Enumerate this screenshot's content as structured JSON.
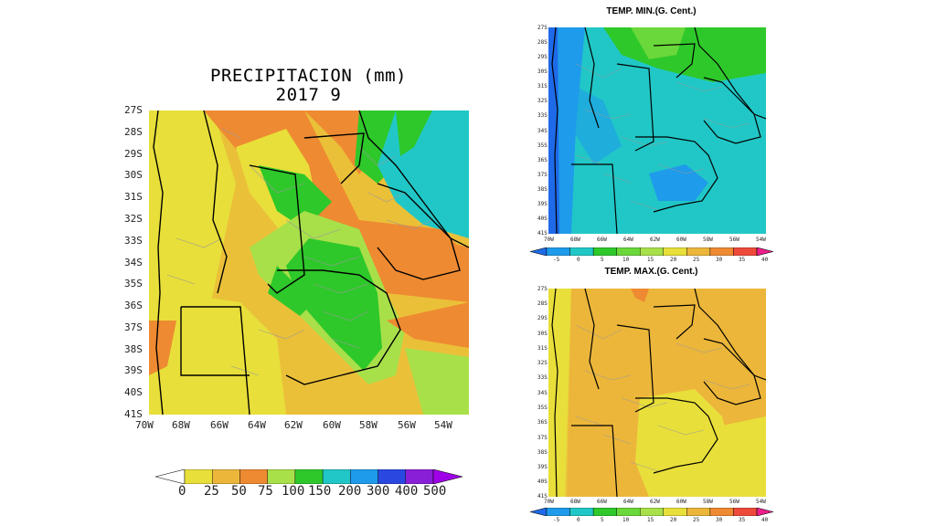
{
  "precip": {
    "title": "PRECIPITACION (mm)",
    "subtitle": "2017  9",
    "lat_ticks": [
      "27S",
      "28S",
      "29S",
      "30S",
      "31S",
      "32S",
      "33S",
      "34S",
      "35S",
      "36S",
      "37S",
      "38S",
      "39S",
      "40S",
      "41S"
    ],
    "lon_ticks": [
      "70W",
      "68W",
      "66W",
      "64W",
      "62W",
      "60W",
      "58W",
      "56W",
      "54W"
    ],
    "colorbar": {
      "labels": [
        "0",
        "25",
        "50",
        "75",
        "100",
        "150",
        "200",
        "300",
        "400",
        "500"
      ],
      "colors": [
        "#ffffff",
        "#e8df3a",
        "#ecb63a",
        "#ee8a32",
        "#a8e04a",
        "#2ec82a",
        "#21c7c7",
        "#1e9bea",
        "#2a48e0",
        "#8a1fd8",
        "#a000e8"
      ]
    }
  },
  "tmin": {
    "title": "TEMP. MIN.(G. Cent.)",
    "lat_ticks": [
      "27S",
      "28S",
      "29S",
      "30S",
      "31S",
      "32S",
      "33S",
      "34S",
      "35S",
      "36S",
      "37S",
      "38S",
      "39S",
      "40S",
      "41S"
    ],
    "lon_ticks": [
      "70W",
      "68W",
      "66W",
      "64W",
      "62W",
      "60W",
      "58W",
      "56W",
      "54W"
    ],
    "colorbar": {
      "labels": [
        "-5",
        "0",
        "5",
        "10",
        "15",
        "20",
        "25",
        "30",
        "35",
        "40"
      ],
      "colors": [
        "#1e6ae8",
        "#1e9bea",
        "#21c7c7",
        "#2ec82a",
        "#6ad83a",
        "#a8e04a",
        "#e8df3a",
        "#ecb63a",
        "#ee8a32",
        "#ee4a3a",
        "#ee1e8a"
      ]
    }
  },
  "tmax": {
    "title": "TEMP. MAX.(G. Cent.)",
    "lat_ticks": [
      "27S",
      "28S",
      "29S",
      "30S",
      "31S",
      "32S",
      "33S",
      "34S",
      "35S",
      "36S",
      "37S",
      "38S",
      "39S",
      "40S",
      "41S"
    ],
    "lon_ticks": [
      "70W",
      "68W",
      "66W",
      "64W",
      "62W",
      "60W",
      "58W",
      "56W",
      "54W"
    ],
    "colorbar": {
      "labels": [
        "-5",
        "0",
        "5",
        "10",
        "15",
        "20",
        "25",
        "30",
        "35",
        "40"
      ],
      "colors": [
        "#1e6ae8",
        "#1e9bea",
        "#21c7c7",
        "#2ec82a",
        "#6ad83a",
        "#a8e04a",
        "#e8df3a",
        "#ecb63a",
        "#ee8a32",
        "#ee4a3a",
        "#ee1e8a"
      ]
    }
  }
}
